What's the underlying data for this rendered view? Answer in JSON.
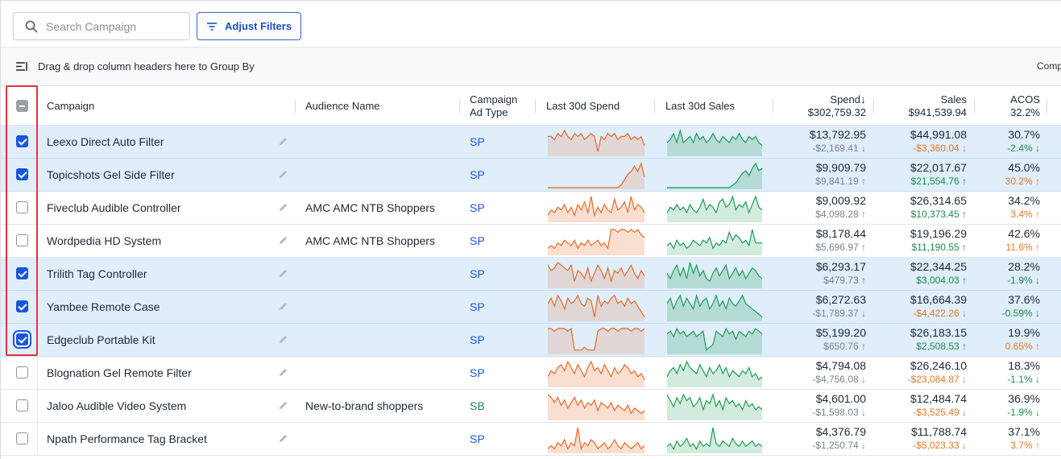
{
  "toolbar": {
    "search_placeholder": "Search Campaign",
    "filters_label": "Adjust Filters"
  },
  "groupbar": {
    "text": "Drag & drop column headers here to Group By",
    "right_text": "Comp"
  },
  "columns": {
    "campaign": "Campaign",
    "audience": "Audience Name",
    "adtype_line1": "Campaign",
    "adtype_line2": "Ad Type",
    "spend30": "Last 30d Spend",
    "sales30": "Last 30d Sales",
    "spend": "Spend",
    "spend_total": "$302,759.32",
    "sales": "Sales",
    "sales_total": "$941,539.94",
    "acos": "ACOS",
    "acos_total": "32.2%"
  },
  "colors": {
    "accent": "#1a56db",
    "selected_row": "#dfeefa",
    "spend_line": "#e8692a",
    "sales_line": "#1f9d55",
    "negative": "#e07a2a",
    "positive": "#1f8a4c",
    "highlight_box": "#e5323c"
  },
  "rows": [
    {
      "checked": true,
      "campaign": "Leexo Direct Auto Filter",
      "audience": "",
      "adtype": "SP",
      "spend": "$13,792.95",
      "spend_delta": "-$2,169.41 ↓",
      "sales": "$44,991.08",
      "sales_delta": "-$3,360.04 ↓",
      "acos": "30.7%",
      "acos_delta": "-2.4% ↓",
      "spend_tone": "gray",
      "sales_tone": "neg",
      "acos_tone": "pos",
      "spark_spend": [
        6,
        6,
        5,
        7,
        6,
        8,
        6,
        5,
        7,
        6,
        7,
        5,
        6,
        7,
        6,
        1,
        6,
        5,
        7,
        6,
        7,
        5,
        6,
        6,
        7,
        5,
        6,
        5,
        6,
        3
      ],
      "spark_sales": [
        4,
        5,
        7,
        4,
        8,
        4,
        5,
        6,
        4,
        7,
        5,
        6,
        4,
        5,
        7,
        5,
        4,
        6,
        5,
        4,
        6,
        5,
        7,
        5,
        4,
        6,
        5,
        6,
        4,
        3
      ]
    },
    {
      "checked": true,
      "campaign": "Topicshots Gel Side Filter",
      "audience": "",
      "adtype": "SP",
      "spend": "$9,909.79",
      "spend_delta": "$9,841.19 ↑",
      "sales": "$22,017.67",
      "sales_delta": "$21,554.76 ↑",
      "acos": "45.0%",
      "acos_delta": "30.2% ↑",
      "spend_tone": "gray",
      "sales_tone": "pos",
      "acos_tone": "neg",
      "spark_spend": [
        0,
        0,
        0,
        0,
        0,
        0,
        0,
        0,
        0,
        0,
        0,
        0,
        0,
        0,
        0,
        0,
        0,
        0,
        0,
        0,
        0,
        0,
        1,
        3,
        5,
        6,
        8,
        6,
        9,
        4
      ],
      "spark_sales": [
        0,
        0,
        0,
        0,
        0,
        0,
        0,
        0,
        0,
        0,
        0,
        0,
        0,
        0,
        0,
        0,
        0,
        0,
        0,
        0,
        1,
        2,
        4,
        6,
        7,
        5,
        8,
        10,
        7,
        8
      ]
    },
    {
      "checked": false,
      "campaign": "Fiveclub Audible Controller",
      "audience": "AMC AMC NTB Shoppers",
      "adtype": "SP",
      "spend": "$9,009.92",
      "spend_delta": "$4,098.28 ↑",
      "sales": "$26,314.65",
      "sales_delta": "$10,373.45 ↑",
      "acos": "34.2%",
      "acos_delta": "3.4% ↑",
      "spend_tone": "gray",
      "sales_tone": "pos",
      "acos_tone": "neg",
      "spark_spend": [
        2,
        4,
        3,
        5,
        4,
        6,
        3,
        5,
        2,
        6,
        4,
        7,
        3,
        9,
        2,
        5,
        3,
        6,
        4,
        3,
        8,
        4,
        5,
        7,
        3,
        9,
        4,
        6,
        5,
        3
      ],
      "spark_sales": [
        3,
        5,
        4,
        6,
        4,
        5,
        3,
        6,
        4,
        3,
        5,
        8,
        4,
        6,
        5,
        3,
        7,
        8,
        5,
        6,
        9,
        4,
        6,
        5,
        7,
        3,
        6,
        9,
        5,
        4
      ]
    },
    {
      "checked": false,
      "campaign": "Wordpedia HD System",
      "audience": "AMC AMC NTB Shoppers",
      "adtype": "SP",
      "spend": "$8,178.44",
      "spend_delta": "$5,696.97 ↑",
      "sales": "$19,196.29",
      "sales_delta": "$11,190.55 ↑",
      "acos": "42.6%",
      "acos_delta": "11.6% ↑",
      "spend_tone": "gray",
      "sales_tone": "pos",
      "acos_tone": "neg",
      "spark_spend": [
        2,
        3,
        2,
        4,
        3,
        5,
        4,
        3,
        5,
        2,
        4,
        3,
        5,
        3,
        4,
        5,
        3,
        4,
        2,
        9,
        9,
        8,
        9,
        9,
        8,
        9,
        8,
        9,
        7,
        6
      ],
      "spark_sales": [
        3,
        4,
        2,
        5,
        3,
        4,
        2,
        3,
        5,
        4,
        3,
        5,
        4,
        6,
        2,
        4,
        3,
        5,
        4,
        8,
        5,
        7,
        6,
        4,
        5,
        3,
        9,
        4,
        4,
        4
      ]
    },
    {
      "checked": true,
      "campaign": "Trilith Tag Controller",
      "audience": "",
      "adtype": "SP",
      "spend": "$6,293.17",
      "spend_delta": "$479.73 ↑",
      "sales": "$22,344.25",
      "sales_delta": "$3,004.03 ↑",
      "acos": "28.2%",
      "acos_delta": "-1.9% ↓",
      "spend_tone": "gray",
      "sales_tone": "pos",
      "acos_tone": "pos",
      "spark_spend": [
        8,
        6,
        7,
        9,
        8,
        7,
        6,
        8,
        2,
        6,
        5,
        3,
        7,
        2,
        5,
        8,
        6,
        3,
        7,
        2,
        6,
        5,
        7,
        4,
        6,
        8,
        5,
        3,
        6,
        4
      ],
      "spark_sales": [
        5,
        3,
        6,
        8,
        4,
        7,
        3,
        9,
        5,
        8,
        4,
        6,
        3,
        2,
        5,
        7,
        4,
        6,
        8,
        3,
        5,
        7,
        4,
        6,
        3,
        5,
        7,
        6,
        4,
        3
      ]
    },
    {
      "checked": true,
      "campaign": "Yambee Remote Case",
      "audience": "",
      "adtype": "SP",
      "spend": "$6,272.63",
      "spend_delta": "-$1,789.37 ↓",
      "sales": "$16,664.39",
      "sales_delta": "-$4,422.26 ↓",
      "acos": "37.6%",
      "acos_delta": "-0.59% ↓",
      "spend_tone": "gray",
      "sales_tone": "neg",
      "acos_tone": "pos",
      "spark_spend": [
        6,
        8,
        5,
        9,
        7,
        4,
        8,
        6,
        7,
        9,
        6,
        5,
        8,
        7,
        1,
        9,
        5,
        7,
        6,
        8,
        9,
        6,
        7,
        5,
        8,
        6,
        7,
        5,
        3,
        1
      ],
      "spark_sales": [
        6,
        8,
        4,
        7,
        9,
        5,
        8,
        6,
        4,
        9,
        5,
        7,
        8,
        4,
        6,
        9,
        5,
        7,
        4,
        8,
        6,
        5,
        7,
        9,
        6,
        5,
        4,
        3,
        2,
        1
      ]
    },
    {
      "checked": true,
      "focus": true,
      "campaign": "Edgeclub Portable Kit",
      "audience": "",
      "adtype": "SP",
      "spend": "$5,199.20",
      "spend_delta": "$650.76 ↑",
      "sales": "$26,183.15",
      "sales_delta": "$2,508.53 ↑",
      "acos": "19.9%",
      "acos_delta": "0.65% ↑",
      "spend_tone": "gray",
      "sales_tone": "pos",
      "acos_tone": "neg",
      "spark_spend": [
        9,
        9,
        8,
        9,
        9,
        9,
        8,
        9,
        1,
        1,
        1,
        2,
        1,
        1,
        1,
        8,
        9,
        9,
        8,
        9,
        9,
        8,
        9,
        9,
        9,
        8,
        9,
        9,
        8,
        9
      ],
      "spark_sales": [
        7,
        8,
        6,
        9,
        7,
        8,
        6,
        7,
        8,
        6,
        7,
        8,
        1,
        2,
        3,
        8,
        7,
        6,
        9,
        7,
        8,
        5,
        8,
        7,
        6,
        8,
        7,
        9,
        8,
        7
      ]
    },
    {
      "checked": false,
      "campaign": "Blognation Gel Remote Filter",
      "audience": "",
      "adtype": "SP",
      "spend": "$4,794.08",
      "spend_delta": "-$4,756.08 ↓",
      "sales": "$26,246.10",
      "sales_delta": "-$23,084.87 ↓",
      "acos": "18.3%",
      "acos_delta": "-1.1% ↓",
      "spend_tone": "gray",
      "sales_tone": "neg",
      "acos_tone": "pos",
      "spark_spend": [
        3,
        5,
        4,
        6,
        7,
        5,
        8,
        6,
        4,
        7,
        5,
        3,
        6,
        8,
        5,
        6,
        4,
        7,
        5,
        3,
        6,
        4,
        5,
        7,
        6,
        4,
        5,
        3,
        4,
        2
      ],
      "spark_sales": [
        3,
        5,
        6,
        4,
        7,
        5,
        8,
        6,
        5,
        4,
        7,
        5,
        3,
        6,
        4,
        5,
        7,
        4,
        6,
        3,
        5,
        4,
        3,
        5,
        4,
        6,
        3,
        4,
        2,
        3
      ]
    },
    {
      "checked": false,
      "campaign": "Jaloo Audible Video System",
      "audience": "New-to-brand shoppers",
      "adtype": "SB",
      "spend": "$4,601.00",
      "spend_delta": "-$1,598.03 ↓",
      "sales": "$12,484.74",
      "sales_delta": "-$3,525.49 ↓",
      "acos": "36.9%",
      "acos_delta": "-1.9% ↓",
      "spend_tone": "gray",
      "sales_tone": "neg",
      "acos_tone": "pos",
      "spark_spend": [
        9,
        8,
        6,
        8,
        5,
        7,
        4,
        6,
        8,
        5,
        7,
        4,
        6,
        5,
        7,
        3,
        6,
        5,
        4,
        6,
        3,
        5,
        4,
        3,
        5,
        2,
        4,
        3,
        2,
        3
      ],
      "spark_sales": [
        8,
        6,
        4,
        7,
        5,
        8,
        6,
        7,
        4,
        5,
        7,
        3,
        6,
        5,
        8,
        4,
        6,
        3,
        7,
        5,
        6,
        4,
        5,
        3,
        6,
        4,
        5,
        3,
        4,
        3
      ]
    },
    {
      "checked": false,
      "campaign": "Npath Performance Tag Bracket",
      "audience": "",
      "adtype": "SP",
      "spend": "$4,376.79",
      "spend_delta": "-$1,250.74 ↓",
      "sales": "$11,788.74",
      "sales_delta": "-$5,023.33 ↓",
      "acos": "37.1%",
      "acos_delta": "3.7% ↑",
      "spend_tone": "gray",
      "sales_tone": "neg",
      "acos_tone": "neg",
      "spark_spend": [
        1,
        2,
        1,
        3,
        2,
        4,
        1,
        3,
        2,
        8,
        1,
        3,
        2,
        4,
        3,
        1,
        2,
        3,
        1,
        2,
        4,
        2,
        1,
        3,
        2,
        1,
        2,
        3,
        1,
        2
      ],
      "spark_sales": [
        2,
        3,
        1,
        4,
        2,
        3,
        5,
        2,
        3,
        1,
        4,
        2,
        3,
        2,
        9,
        3,
        2,
        4,
        3,
        2,
        5,
        3,
        2,
        4,
        2,
        3,
        4,
        2,
        3,
        2
      ]
    }
  ]
}
